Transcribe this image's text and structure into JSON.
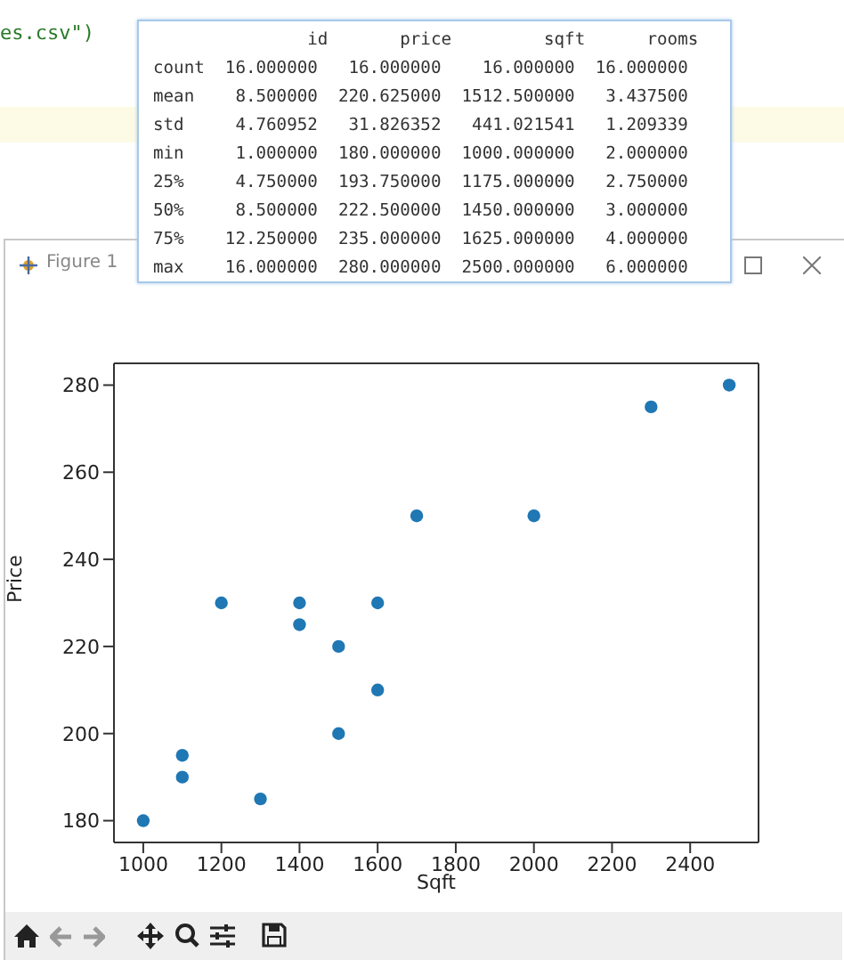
{
  "chart_data": {
    "type": "scatter",
    "xlabel": "Sqft",
    "ylabel": "Price",
    "x": [
      1000,
      1100,
      1100,
      1200,
      1300,
      1400,
      1400,
      1500,
      1500,
      1600,
      1600,
      1700,
      2000,
      2300,
      2500
    ],
    "series": [
      {
        "color": "#1f77b4",
        "values": [
          180,
          195,
          190,
          230,
          185,
          230,
          225,
          220,
          200,
          230,
          210,
          250,
          250,
          275,
          280
        ]
      }
    ],
    "xlim": [
      925,
      2575
    ],
    "xticks": [
      1000,
      1200,
      1400,
      1600,
      1800,
      2000,
      2200,
      2400
    ],
    "ylim": [
      175,
      285
    ],
    "yticks": [
      180,
      200,
      220,
      240,
      260,
      280
    ],
    "grid": false,
    "legend": false,
    "marker": "circle",
    "annotations": [
      "es.csv\")",
      "               id       price         sqft      rooms",
      "count  16.000000   16.000000    16.000000  16.000000",
      "mean    8.500000  220.625000  1512.500000   3.437500",
      "std     4.760952   31.826352   441.021541   1.209339",
      "min     1.000000  180.000000  1000.000000   2.000000",
      "25%     4.750000  193.750000  1175.000000   2.750000",
      "50%     8.500000  222.500000  1450.000000   3.000000",
      "75%    12.250000  235.000000  1625.000000   4.000000",
      "max    16.000000  280.000000  2500.000000   6.000000",
      "Figure 1"
    ]
  }
}
